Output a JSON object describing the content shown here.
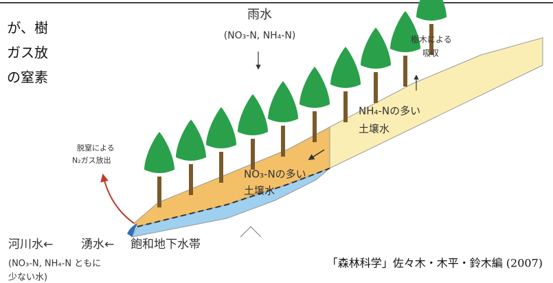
{
  "side_text": [
    "が、樹",
    "ガス放",
    "の窒素"
  ],
  "rain": {
    "title": "雨水",
    "species": "(NO₃-N, NH₄-N)"
  },
  "tree_uptake": [
    "樹木による",
    "吸収"
  ],
  "upper_soil_water": [
    "NH₄-Nの多い",
    "土壌水"
  ],
  "lower_soil_water": [
    "NO₃-Nの多い",
    "土壌水"
  ],
  "denitrification": [
    "脱窒による",
    "N₂ガス放出"
  ],
  "flow": [
    "河川水←",
    "湧水←",
    "飽和地下水帯"
  ],
  "flow_note": [
    "(NO₃-N, NH₄-N ともに",
    "少ない水)"
  ],
  "citation": "「森林科学」佐々木・木平・鈴木編 (2007)"
}
